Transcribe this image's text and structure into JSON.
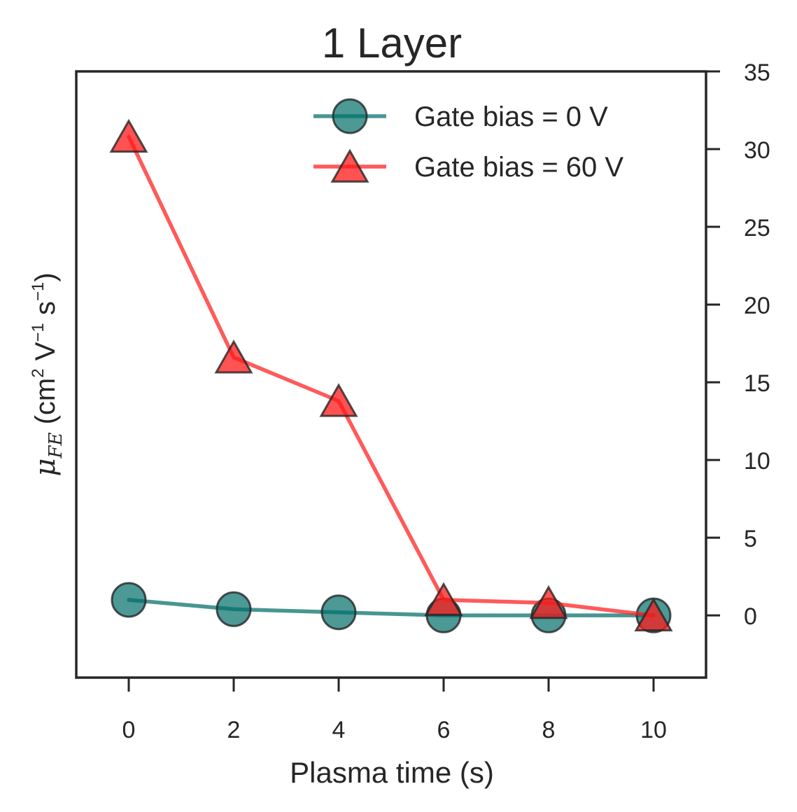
{
  "chart_data": {
    "type": "line",
    "title": "1 Layer",
    "xlabel": "Plasma time (s)",
    "ylabel": {
      "symbol": "μ",
      "subscript": "FE",
      "units_prefix": " (cm",
      "exp1": "2",
      "mid1": " V",
      "exp2": "−1",
      "mid2": " s",
      "exp3": "−1",
      "units_suffix": ")"
    },
    "y_axis_side": "right",
    "xlim": [
      -1,
      11
    ],
    "ylim": [
      -4,
      35
    ],
    "x_ticks": [
      0,
      2,
      4,
      6,
      8,
      10
    ],
    "y_ticks": [
      0,
      5,
      10,
      15,
      20,
      25,
      30,
      35
    ],
    "grid": false,
    "legend_position": "top-right",
    "x": [
      0,
      2,
      4,
      6,
      8,
      10
    ],
    "series": [
      {
        "name": "Gate bias = 0 V",
        "marker": "circle",
        "color": "#006d6a",
        "values": [
          1.0,
          0.4,
          0.2,
          0.0,
          0.0,
          0.0
        ]
      },
      {
        "name": "Gate bias = 60 V",
        "marker": "triangle",
        "color": "#ff1a1a",
        "values": [
          30.8,
          16.6,
          13.8,
          1.0,
          0.8,
          0.0
        ]
      }
    ]
  }
}
